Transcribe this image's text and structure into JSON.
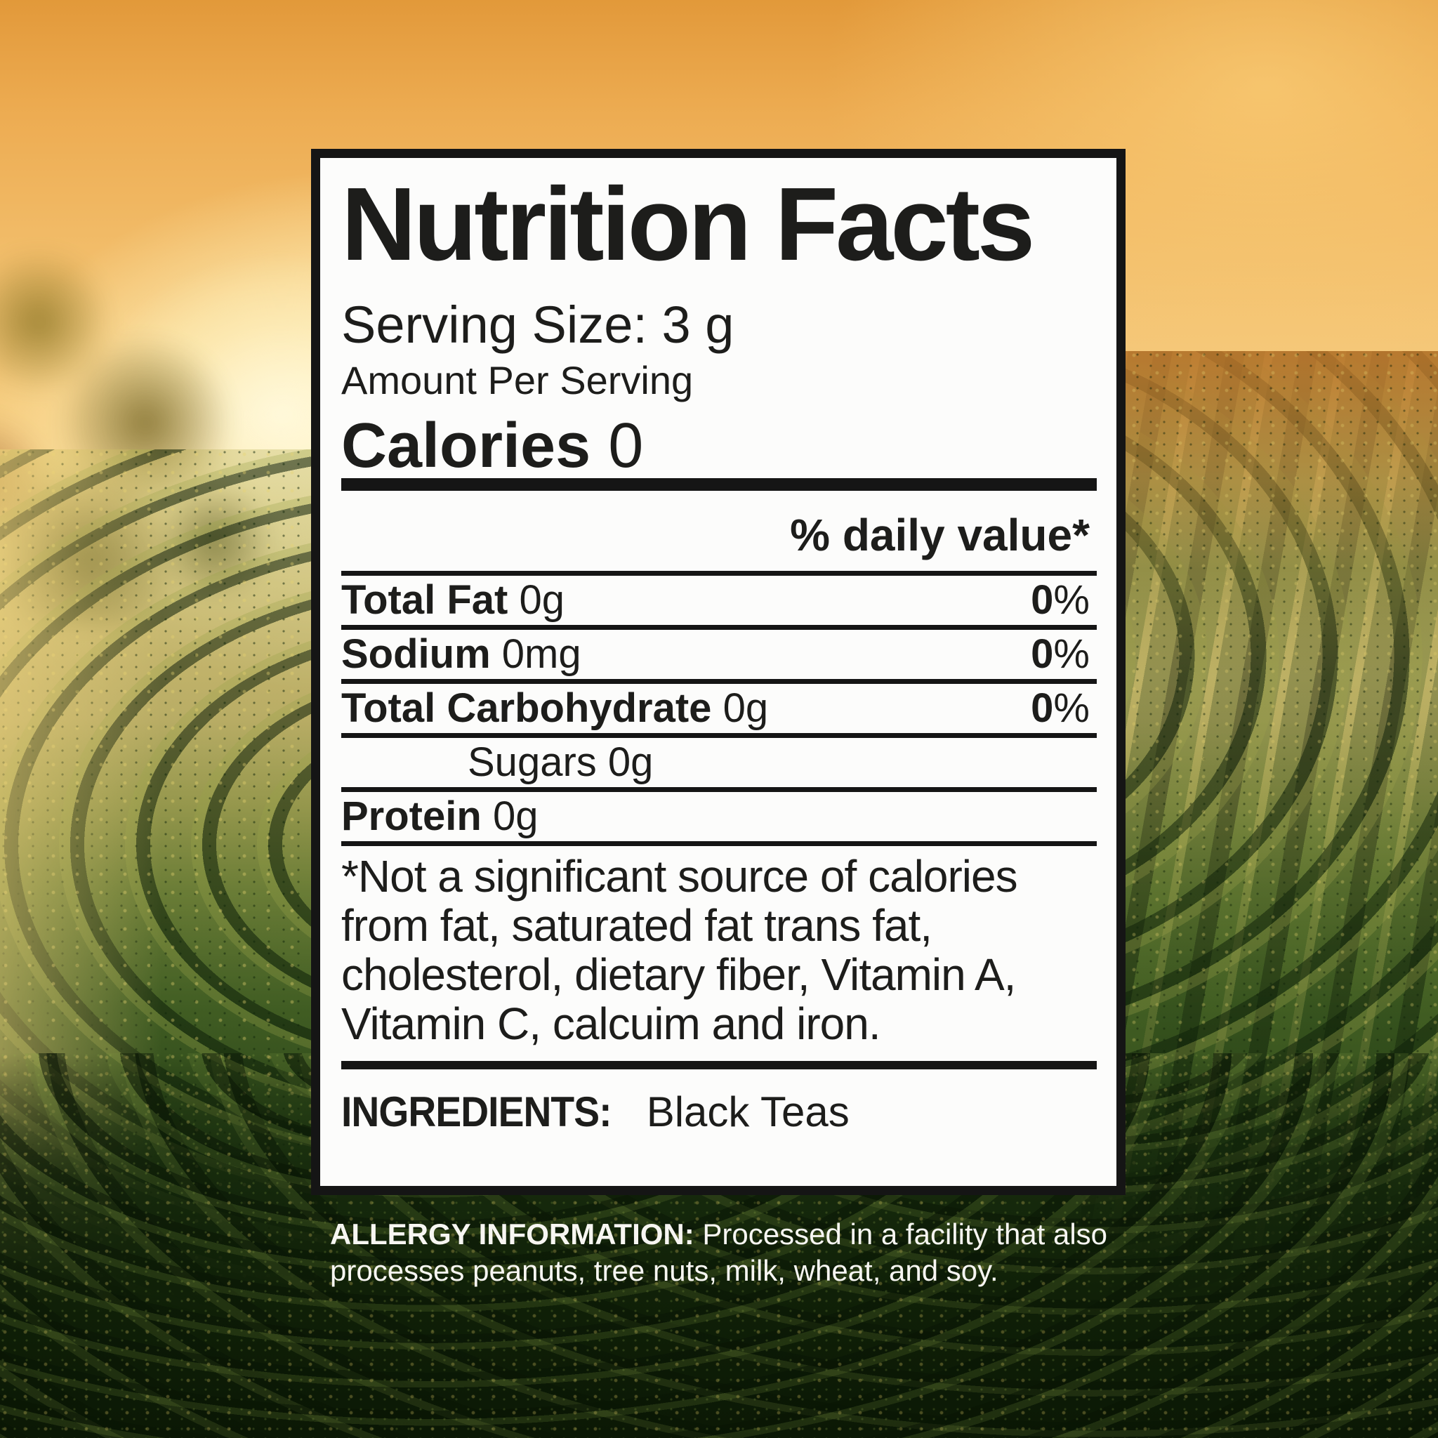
{
  "label": {
    "title": "Nutrition Facts",
    "serving_size_label": "Serving Size:",
    "serving_size_value": "3 g",
    "amount_per_serving": "Amount Per Serving",
    "calories_label": "Calories",
    "calories_value": "0",
    "daily_value_header": "% daily value*",
    "rows": [
      {
        "name": "Total Fat",
        "amount": "0g",
        "percent_num": "0",
        "percent_sign": "%"
      },
      {
        "name": "Sodium",
        "amount": "0mg",
        "percent_num": "0",
        "percent_sign": "%"
      },
      {
        "name": "Total Carbohydrate",
        "amount": "0g",
        "percent_num": "0",
        "percent_sign": "%"
      },
      {
        "name": "Sugars",
        "amount": "0g"
      },
      {
        "name": "Protein",
        "amount": "0g"
      }
    ],
    "footnote": "*Not a significant source of calories from fat, saturated fat trans fat, cholesterol, dietary fiber, Vitamin A, Vitamin C, calcuim and iron.",
    "ingredients_label": "INGREDIENTS:",
    "ingredients_value": "Black Teas"
  },
  "allergy": {
    "label": "ALLERGY INFORMATION:",
    "text": "Processed in a facility that also processes peanuts, tree nuts, milk, wheat, and soy."
  },
  "colors": {
    "label_border": "#151515",
    "label_background": "#fcfcfb",
    "label_text": "#1d1d1b",
    "allergy_text": "#f7f6f2",
    "sky_gold": "#f4c474",
    "sunset_orange": "#e2993a",
    "tea_green_dark": "#1f3712",
    "tea_green_mid": "#55742e",
    "bush_shadow": "#0b1805"
  }
}
